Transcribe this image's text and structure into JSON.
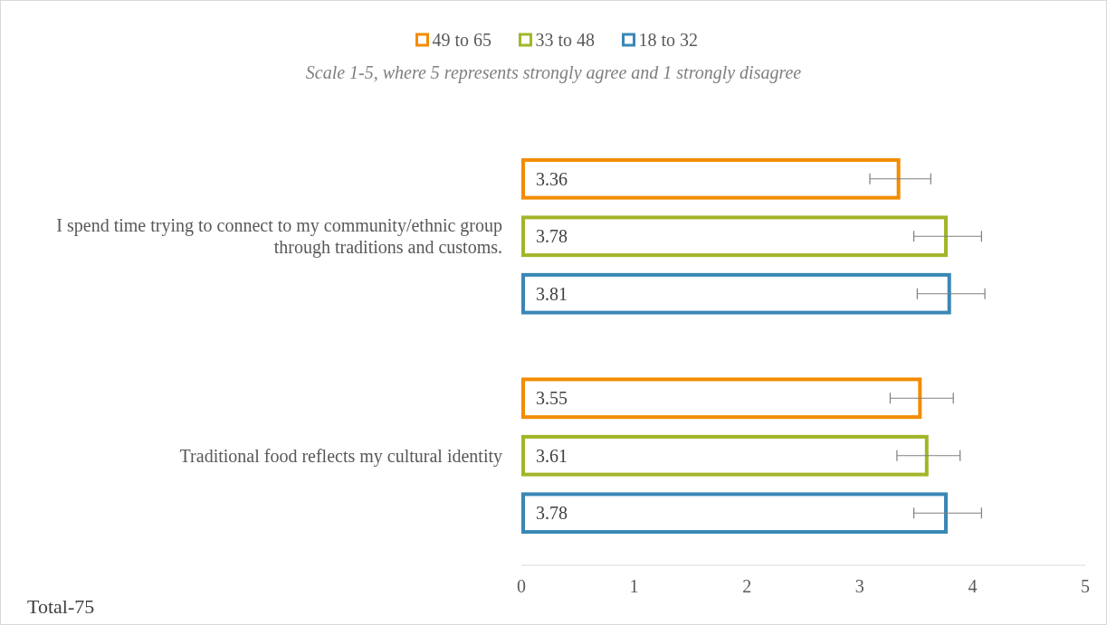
{
  "chart_data": {
    "type": "bar",
    "orientation": "horizontal",
    "subtitle": "Scale 1-5, where 5 represents strongly agree and 1 strongly disagree",
    "categories": [
      "I spend time trying to connect to my community/ethnic group through traditions and customs.",
      "Traditional food reflects my cultural identity"
    ],
    "series": [
      {
        "name": "49 to 65",
        "color": "#f28c00",
        "values": [
          3.36,
          3.55
        ],
        "errors": [
          0.27,
          0.28
        ]
      },
      {
        "name": "33 to 48",
        "color": "#a2b528",
        "values": [
          3.78,
          3.61
        ],
        "errors": [
          0.3,
          0.28
        ]
      },
      {
        "name": "18 to 32",
        "color": "#3a87b5",
        "values": [
          3.81,
          3.78
        ],
        "errors": [
          0.3,
          0.3
        ]
      }
    ],
    "xlim": [
      0,
      5
    ],
    "xticks": [
      0,
      1,
      2,
      3,
      4,
      5
    ],
    "data_labels": true,
    "legend": "top",
    "grid": false,
    "annotations": [
      "Total-75"
    ]
  }
}
